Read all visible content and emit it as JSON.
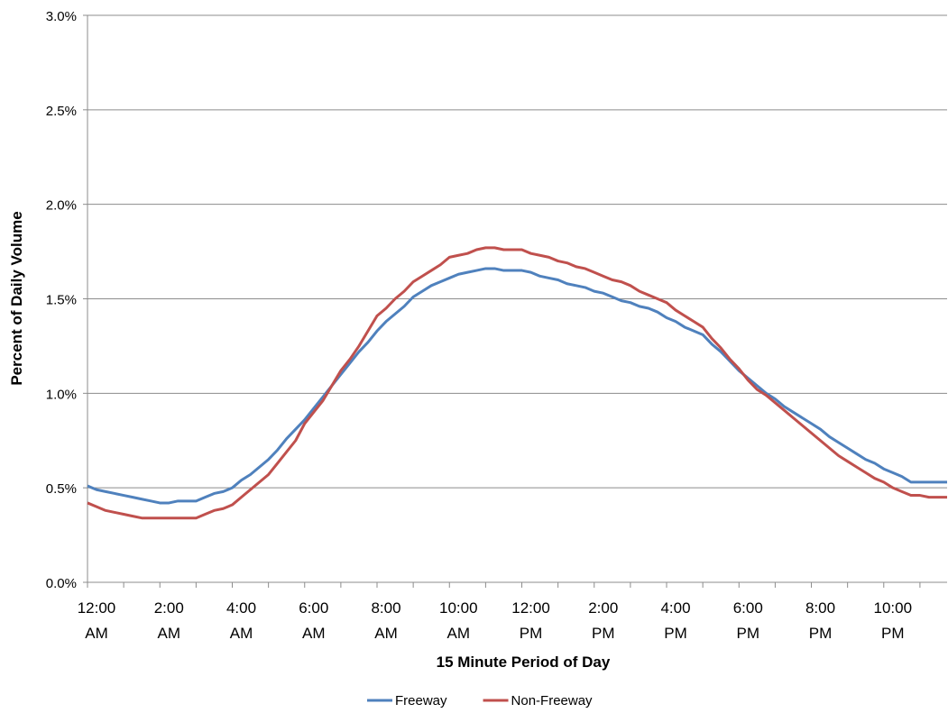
{
  "chart_data": {
    "type": "line",
    "x_label": "15 Minute Period of Day",
    "y_label": "Percent of Daily Volume",
    "categories": [
      "12:00 AM",
      null,
      null,
      null,
      null,
      null,
      null,
      null,
      "2:00 AM",
      null,
      null,
      null,
      null,
      null,
      null,
      null,
      "4:00 AM",
      null,
      null,
      null,
      null,
      null,
      null,
      null,
      "6:00 AM",
      null,
      null,
      null,
      null,
      null,
      null,
      null,
      "8:00 AM",
      null,
      null,
      null,
      null,
      null,
      null,
      null,
      "10:00 AM",
      null,
      null,
      null,
      null,
      null,
      null,
      null,
      "12:00 PM",
      null,
      null,
      null,
      null,
      null,
      null,
      null,
      "2:00 PM",
      null,
      null,
      null,
      null,
      null,
      null,
      null,
      "4:00 PM",
      null,
      null,
      null,
      null,
      null,
      null,
      null,
      "6:00 PM",
      null,
      null,
      null,
      null,
      null,
      null,
      null,
      "8:00 PM",
      null,
      null,
      null,
      null,
      null,
      null,
      null,
      "10:00 PM",
      null,
      null,
      null,
      null,
      null,
      null,
      null
    ],
    "series": [
      {
        "name": "Freeway",
        "color": "#4f81bd",
        "values": [
          0.51,
          0.49,
          0.48,
          0.47,
          0.46,
          0.45,
          0.44,
          0.43,
          0.42,
          0.42,
          0.43,
          0.43,
          0.43,
          0.45,
          0.47,
          0.48,
          0.5,
          0.54,
          0.57,
          0.61,
          0.65,
          0.7,
          0.76,
          0.81,
          0.86,
          0.92,
          0.98,
          1.04,
          1.1,
          1.16,
          1.22,
          1.27,
          1.33,
          1.38,
          1.42,
          1.46,
          1.51,
          1.54,
          1.57,
          1.59,
          1.61,
          1.63,
          1.64,
          1.65,
          1.66,
          1.66,
          1.65,
          1.65,
          1.65,
          1.64,
          1.62,
          1.61,
          1.6,
          1.58,
          1.57,
          1.56,
          1.54,
          1.53,
          1.51,
          1.49,
          1.48,
          1.46,
          1.45,
          1.43,
          1.4,
          1.38,
          1.35,
          1.33,
          1.31,
          1.26,
          1.22,
          1.17,
          1.12,
          1.08,
          1.04,
          1.0,
          0.97,
          0.93,
          0.9,
          0.87,
          0.84,
          0.81,
          0.77,
          0.74,
          0.71,
          0.68,
          0.65,
          0.63,
          0.6,
          0.58,
          0.56,
          0.53,
          0.53,
          0.53,
          0.53,
          0.53
        ]
      },
      {
        "name": "Non-Freeway",
        "color": "#c0504d",
        "values": [
          0.42,
          0.4,
          0.38,
          0.37,
          0.36,
          0.35,
          0.34,
          0.34,
          0.34,
          0.34,
          0.34,
          0.34,
          0.34,
          0.36,
          0.38,
          0.39,
          0.41,
          0.45,
          0.49,
          0.53,
          0.57,
          0.63,
          0.69,
          0.75,
          0.84,
          0.9,
          0.96,
          1.04,
          1.12,
          1.18,
          1.25,
          1.33,
          1.41,
          1.45,
          1.5,
          1.54,
          1.59,
          1.62,
          1.65,
          1.68,
          1.72,
          1.73,
          1.74,
          1.76,
          1.77,
          1.77,
          1.76,
          1.76,
          1.76,
          1.74,
          1.73,
          1.72,
          1.7,
          1.69,
          1.67,
          1.66,
          1.64,
          1.62,
          1.6,
          1.59,
          1.57,
          1.54,
          1.52,
          1.5,
          1.48,
          1.44,
          1.41,
          1.38,
          1.35,
          1.29,
          1.24,
          1.18,
          1.13,
          1.07,
          1.02,
          0.99,
          0.95,
          0.91,
          0.87,
          0.83,
          0.79,
          0.75,
          0.71,
          0.67,
          0.64,
          0.61,
          0.58,
          0.55,
          0.53,
          0.5,
          0.48,
          0.46,
          0.46,
          0.45,
          0.45,
          0.45
        ]
      }
    ],
    "ylim": [
      0,
      3
    ],
    "yticks": [
      {
        "value": 0,
        "label": "0.0%"
      },
      {
        "value": 0.5,
        "label": "0.5%"
      },
      {
        "value": 1,
        "label": "1.0%"
      },
      {
        "value": 1.5,
        "label": "1.5%"
      },
      {
        "value": 2,
        "label": "2.0%"
      },
      {
        "value": 2.5,
        "label": "2.5%"
      },
      {
        "value": 3,
        "label": "3.0%"
      }
    ],
    "grid": true,
    "legend": "bottom"
  }
}
